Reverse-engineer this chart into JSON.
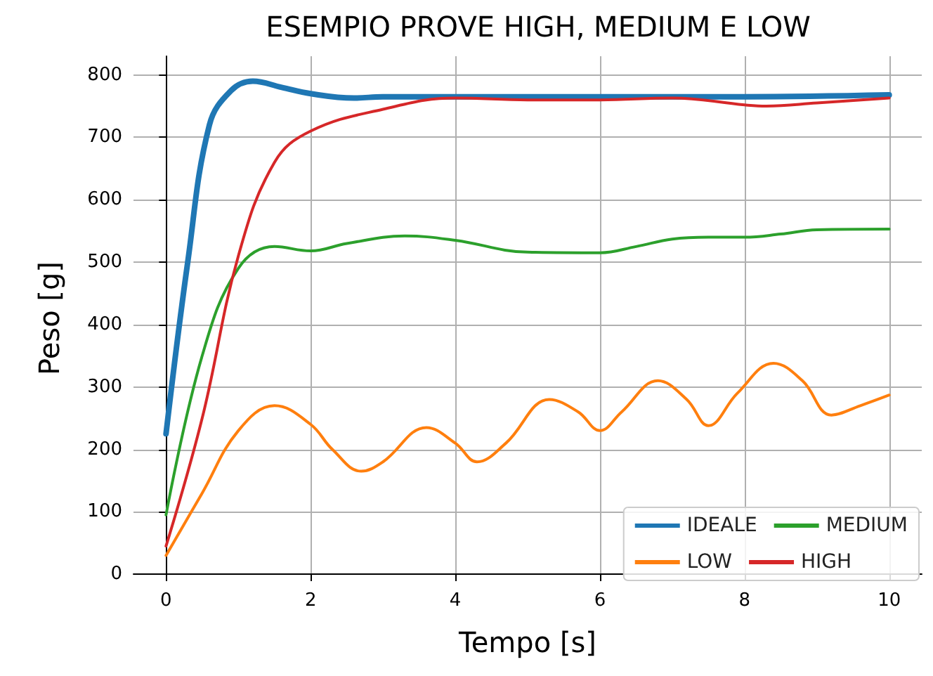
{
  "chart_data": {
    "type": "line",
    "title": "ESEMPIO PROVE HIGH, MEDIUM E LOW",
    "xlabel": "Tempo [s]",
    "ylabel": "Peso [g]",
    "xlim": [
      -0.45,
      10.45
    ],
    "xticks": [
      0,
      2,
      4,
      6,
      8,
      10
    ],
    "ylim": [
      -10,
      830
    ],
    "yticks": [
      0,
      100,
      200,
      300,
      400,
      500,
      600,
      700,
      800
    ],
    "grid": true,
    "legend": "bottom right",
    "marker": "none",
    "line_style": "solid",
    "series": [
      {
        "name": "IDEALE",
        "color": "#1f77b4",
        "x": [
          0,
          0.3,
          0.6,
          0.9,
          1.2,
          1.6,
          2,
          2.6,
          3,
          4,
          6,
          8,
          10
        ],
        "values": [
          225,
          500,
          720,
          775,
          790,
          780,
          770,
          763,
          765,
          765,
          765,
          765,
          768
        ]
      },
      {
        "name": "LOW",
        "color": "#ff7f0e",
        "x": [
          0,
          0.5,
          1,
          1.5,
          2,
          2.3,
          2.7,
          3,
          3.6,
          4,
          4.3,
          4.7,
          5.3,
          5.7,
          6,
          6.3,
          6.8,
          7.2,
          7.5,
          7.9,
          8.4,
          8.8,
          9.2,
          9.6,
          10
        ],
        "values": [
          30,
          130,
          230,
          270,
          240,
          200,
          165,
          180,
          235,
          210,
          180,
          210,
          280,
          260,
          230,
          260,
          310,
          280,
          238,
          290,
          338,
          310,
          255,
          270,
          287
        ]
      },
      {
        "name": "MEDIUM",
        "color": "#2ca02c",
        "x": [
          0,
          0.5,
          1,
          1.5,
          2,
          2.5,
          3.3,
          4,
          5,
          6,
          6.5,
          7,
          7.5,
          8,
          8.5,
          9,
          10
        ],
        "values": [
          95,
          350,
          490,
          525,
          518,
          530,
          542,
          535,
          516,
          515,
          525,
          537,
          540,
          540,
          545,
          552,
          553
        ]
      },
      {
        "name": "HIGH",
        "color": "#d62728",
        "x": [
          0,
          0.5,
          1,
          1.5,
          2,
          3,
          4,
          5,
          6,
          7,
          8,
          8.3,
          9,
          10
        ],
        "values": [
          45,
          250,
          510,
          660,
          710,
          745,
          763,
          760,
          760,
          763,
          752,
          750,
          755,
          763
        ]
      }
    ]
  }
}
